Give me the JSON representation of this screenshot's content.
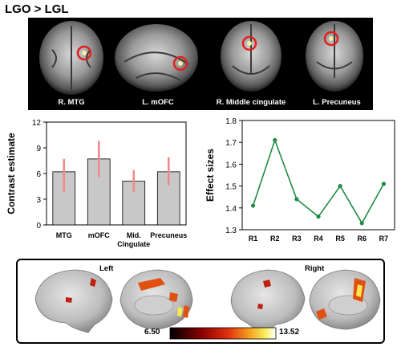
{
  "header": {
    "title": "LGO > LGL"
  },
  "brain_panels": [
    {
      "label": "R. MTG",
      "view": "axial"
    },
    {
      "label": "L. mOFC",
      "view": "sagittal"
    },
    {
      "label": "R. Middle cingulate",
      "view": "coronal"
    },
    {
      "label": "L. Precuneus",
      "view": "coronal"
    }
  ],
  "colors": {
    "bar_fill": "#c8c8c8",
    "error_bar": "#f08a8a",
    "line": "#1e8c45",
    "highlight_circle": "#e02020"
  },
  "chart_data": [
    {
      "type": "bar",
      "categories": [
        "MTG",
        "mOFC",
        "Mid. Cingulate",
        "Precuneus"
      ],
      "category_lines": [
        [
          "MTG"
        ],
        [
          "mOFC"
        ],
        [
          "Mid.",
          "Cingulate"
        ],
        [
          "Precuneus"
        ]
      ],
      "values": [
        6.2,
        7.7,
        5.1,
        6.2
      ],
      "error_low": [
        3.9,
        5.6,
        3.8,
        4.6
      ],
      "error_high": [
        7.7,
        9.8,
        6.4,
        7.9
      ],
      "ylabel": "Contrast estimate",
      "ylim": [
        0,
        12
      ],
      "yticks": [
        0,
        3,
        6,
        9,
        12
      ]
    },
    {
      "type": "line",
      "x": [
        "R1",
        "R2",
        "R3",
        "R4",
        "R5",
        "R6",
        "R7"
      ],
      "values": [
        1.41,
        1.71,
        1.44,
        1.36,
        1.5,
        1.33,
        1.51
      ],
      "ylabel": "Effect sizes",
      "ylim": [
        1.3,
        1.8
      ],
      "yticks": [
        1.3,
        1.4,
        1.5,
        1.6,
        1.7,
        1.8
      ]
    }
  ],
  "surface": {
    "left_label": "Left",
    "right_label": "Right",
    "colorbar_min": "6.50",
    "colorbar_max": "13.52"
  }
}
